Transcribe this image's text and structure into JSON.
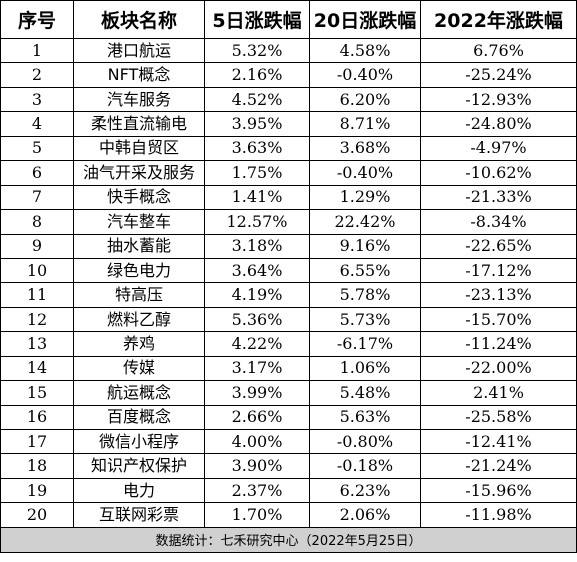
{
  "header": {
    "rank": "序号",
    "sector": "板块名称",
    "chg5d": "5日涨跌幅",
    "chg20d": "20日涨跌幅",
    "chg2022": "2022年涨跌幅"
  },
  "rows": [
    {
      "rank": "1",
      "sector": "港口航运",
      "chg5d": "5.32%",
      "chg20d": "4.58%",
      "chg2022": "6.76%"
    },
    {
      "rank": "2",
      "sector": "NFT概念",
      "chg5d": "2.16%",
      "chg20d": "-0.40%",
      "chg2022": "-25.24%"
    },
    {
      "rank": "3",
      "sector": "汽车服务",
      "chg5d": "4.52%",
      "chg20d": "6.20%",
      "chg2022": "-12.93%"
    },
    {
      "rank": "4",
      "sector": "柔性直流输电",
      "chg5d": "3.95%",
      "chg20d": "8.71%",
      "chg2022": "-24.80%"
    },
    {
      "rank": "5",
      "sector": "中韩自贸区",
      "chg5d": "3.63%",
      "chg20d": "3.68%",
      "chg2022": "-4.97%"
    },
    {
      "rank": "6",
      "sector": "油气开采及服务",
      "chg5d": "1.75%",
      "chg20d": "-0.40%",
      "chg2022": "-10.62%"
    },
    {
      "rank": "7",
      "sector": "快手概念",
      "chg5d": "1.41%",
      "chg20d": "1.29%",
      "chg2022": "-21.33%"
    },
    {
      "rank": "8",
      "sector": "汽车整车",
      "chg5d": "12.57%",
      "chg20d": "22.42%",
      "chg2022": "-8.34%"
    },
    {
      "rank": "9",
      "sector": "抽水蓄能",
      "chg5d": "3.18%",
      "chg20d": "9.16%",
      "chg2022": "-22.65%"
    },
    {
      "rank": "10",
      "sector": "绿色电力",
      "chg5d": "3.64%",
      "chg20d": "6.55%",
      "chg2022": "-17.12%"
    },
    {
      "rank": "11",
      "sector": "特高压",
      "chg5d": "4.19%",
      "chg20d": "5.78%",
      "chg2022": "-23.13%"
    },
    {
      "rank": "12",
      "sector": "燃料乙醇",
      "chg5d": "5.36%",
      "chg20d": "5.73%",
      "chg2022": "-15.70%"
    },
    {
      "rank": "13",
      "sector": "养鸡",
      "chg5d": "4.22%",
      "chg20d": "-6.17%",
      "chg2022": "-11.24%"
    },
    {
      "rank": "14",
      "sector": "传媒",
      "chg5d": "3.17%",
      "chg20d": "1.06%",
      "chg2022": "-22.00%"
    },
    {
      "rank": "15",
      "sector": "航运概念",
      "chg5d": "3.99%",
      "chg20d": "5.48%",
      "chg2022": "2.41%"
    },
    {
      "rank": "16",
      "sector": "百度概念",
      "chg5d": "2.66%",
      "chg20d": "5.63%",
      "chg2022": "-25.58%"
    },
    {
      "rank": "17",
      "sector": "微信小程序",
      "chg5d": "4.00%",
      "chg20d": "-0.80%",
      "chg2022": "-12.41%"
    },
    {
      "rank": "18",
      "sector": "知识产权保护",
      "chg5d": "3.90%",
      "chg20d": "-0.18%",
      "chg2022": "-21.24%"
    },
    {
      "rank": "19",
      "sector": "电力",
      "chg5d": "2.37%",
      "chg20d": "6.23%",
      "chg2022": "-15.96%"
    },
    {
      "rank": "20",
      "sector": "互联网彩票",
      "chg5d": "1.70%",
      "chg20d": "2.06%",
      "chg2022": "-11.98%"
    }
  ],
  "footer": {
    "source": "数据统计：七禾研究中心（2022年5月25日）"
  },
  "colors": {
    "border": "#000000",
    "footer_bg": "#d0d0d0",
    "background": "#ffffff"
  }
}
